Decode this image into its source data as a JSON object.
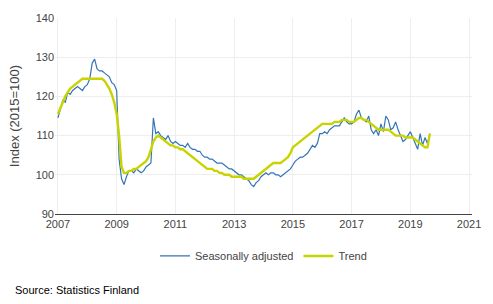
{
  "chart_data": {
    "type": "line",
    "ylabel": "Index (2015=100)",
    "annotations": [
      "Source: Statistics Finland"
    ],
    "xlim": [
      2006.9,
      2021.1
    ],
    "xticks": [
      2007,
      2009,
      2011,
      2013,
      2015,
      2017,
      2019,
      2021
    ],
    "ylim": [
      90,
      140
    ],
    "yticks": [
      90,
      100,
      110,
      120,
      130,
      140
    ],
    "grid": true,
    "legend": "bottom",
    "x": [
      2007,
      2007.083333,
      2007.166667,
      2007.25,
      2007.333333,
      2007.416667,
      2007.5,
      2007.583333,
      2007.666667,
      2007.75,
      2007.833333,
      2007.916667,
      2008,
      2008.083333,
      2008.166667,
      2008.25,
      2008.333333,
      2008.416667,
      2008.5,
      2008.583333,
      2008.666667,
      2008.75,
      2008.833333,
      2008.916667,
      2009,
      2009.083333,
      2009.166667,
      2009.25,
      2009.333333,
      2009.416667,
      2009.5,
      2009.583333,
      2009.666667,
      2009.75,
      2009.833333,
      2009.916667,
      2010,
      2010.083333,
      2010.166667,
      2010.25,
      2010.333333,
      2010.416667,
      2010.5,
      2010.583333,
      2010.666667,
      2010.75,
      2010.833333,
      2010.916667,
      2011,
      2011.083333,
      2011.166667,
      2011.25,
      2011.333333,
      2011.416667,
      2011.5,
      2011.583333,
      2011.666667,
      2011.75,
      2011.833333,
      2011.916667,
      2012,
      2012.083333,
      2012.166667,
      2012.25,
      2012.333333,
      2012.416667,
      2012.5,
      2012.583333,
      2012.666667,
      2012.75,
      2012.833333,
      2012.916667,
      2013,
      2013.083333,
      2013.166667,
      2013.25,
      2013.333333,
      2013.416667,
      2013.5,
      2013.583333,
      2013.666667,
      2013.75,
      2013.833333,
      2013.916667,
      2014,
      2014.083333,
      2014.166667,
      2014.25,
      2014.333333,
      2014.416667,
      2014.5,
      2014.583333,
      2014.666667,
      2014.75,
      2014.833333,
      2014.916667,
      2015,
      2015.083333,
      2015.166667,
      2015.25,
      2015.333333,
      2015.416667,
      2015.5,
      2015.583333,
      2015.666667,
      2015.75,
      2015.833333,
      2015.916667,
      2016,
      2016.083333,
      2016.166667,
      2016.25,
      2016.333333,
      2016.416667,
      2016.5,
      2016.583333,
      2016.666667,
      2016.75,
      2016.833333,
      2016.916667,
      2017,
      2017.083333,
      2017.166667,
      2017.25,
      2017.333333,
      2017.416667,
      2017.5,
      2017.583333,
      2017.666667,
      2017.75,
      2017.833333,
      2017.916667,
      2018,
      2018.083333,
      2018.166667,
      2018.25,
      2018.333333,
      2018.416667,
      2018.5,
      2018.583333,
      2018.666667,
      2018.75,
      2018.833333,
      2018.916667,
      2019,
      2019.083333,
      2019.166667,
      2019.25,
      2019.333333,
      2019.416667,
      2019.5,
      2019.583333,
      2019.666667
    ],
    "series": [
      {
        "name": "Seasonally adjusted",
        "color": "#3375B5",
        "values": [
          114.5,
          116.5,
          119.0,
          118.5,
          121.0,
          120.5,
          121.5,
          122.0,
          122.5,
          122.0,
          121.5,
          122.5,
          123.0,
          124.5,
          128.5,
          129.5,
          127.0,
          126.5,
          126.5,
          126.0,
          125.5,
          125.0,
          123.5,
          123.0,
          121.5,
          104.0,
          99.0,
          97.5,
          99.5,
          101.0,
          101.0,
          100.5,
          101.5,
          101.0,
          100.5,
          101.0,
          102.0,
          102.5,
          103.0,
          114.5,
          110.5,
          111.0,
          110.0,
          109.5,
          109.0,
          110.0,
          108.5,
          108.0,
          108.5,
          108.0,
          107.5,
          107.5,
          107.0,
          108.0,
          107.0,
          106.5,
          106.5,
          106.0,
          106.0,
          105.0,
          104.5,
          104.5,
          104.0,
          104.0,
          103.5,
          103.0,
          103.0,
          103.0,
          102.5,
          102.0,
          101.5,
          101.5,
          101.0,
          100.5,
          100.0,
          100.0,
          99.5,
          99.0,
          98.5,
          97.5,
          97.0,
          98.0,
          98.5,
          99.5,
          100.0,
          100.5,
          100.0,
          100.5,
          100.5,
          100.0,
          100.0,
          99.5,
          100.0,
          100.5,
          101.0,
          101.5,
          102.5,
          103.5,
          104.0,
          104.5,
          104.5,
          105.0,
          105.5,
          106.5,
          107.5,
          107.0,
          108.0,
          110.5,
          110.5,
          111.0,
          110.5,
          111.5,
          112.0,
          112.5,
          112.5,
          112.5,
          113.5,
          114.5,
          113.5,
          113.0,
          113.0,
          113.5,
          115.5,
          116.5,
          114.5,
          114.0,
          113.5,
          115.0,
          111.5,
          110.5,
          111.5,
          110.0,
          113.0,
          111.0,
          115.0,
          114.0,
          111.5,
          112.0,
          113.5,
          111.5,
          110.0,
          108.5,
          109.0,
          110.0,
          111.0,
          109.5,
          108.0,
          106.5,
          110.5,
          107.5,
          109.5,
          108.0,
          110.5
        ]
      },
      {
        "name": "Trend",
        "color": "#C8D400",
        "values": [
          115.5,
          117.0,
          118.5,
          120.0,
          121.0,
          122.0,
          122.5,
          123.0,
          123.5,
          124.0,
          124.5,
          124.5,
          124.5,
          124.5,
          124.5,
          124.5,
          124.5,
          124.5,
          124.5,
          124.0,
          123.0,
          122.0,
          120.5,
          118.5,
          115.5,
          110.0,
          102.0,
          100.5,
          100.5,
          101.0,
          101.0,
          101.5,
          101.5,
          102.0,
          102.5,
          103.0,
          103.5,
          104.5,
          106.5,
          108.5,
          109.5,
          110.0,
          109.5,
          109.0,
          108.5,
          108.0,
          107.5,
          107.5,
          107.0,
          107.0,
          106.5,
          106.5,
          106.0,
          105.5,
          105.0,
          104.5,
          104.0,
          103.5,
          103.0,
          102.5,
          102.0,
          101.5,
          101.5,
          101.5,
          101.0,
          101.0,
          100.5,
          100.5,
          100.0,
          100.0,
          100.0,
          99.5,
          99.5,
          99.5,
          99.5,
          99.5,
          99.0,
          99.0,
          99.0,
          99.0,
          99.0,
          99.5,
          100.0,
          100.5,
          101.0,
          101.5,
          102.0,
          102.5,
          103.0,
          103.0,
          103.0,
          103.0,
          103.5,
          104.0,
          104.5,
          105.5,
          107.0,
          107.5,
          108.0,
          108.5,
          109.0,
          109.5,
          110.0,
          110.5,
          111.0,
          111.5,
          112.0,
          112.5,
          113.0,
          113.0,
          113.0,
          113.0,
          113.0,
          113.5,
          113.5,
          113.5,
          114.0,
          114.0,
          114.0,
          113.5,
          113.5,
          113.5,
          114.0,
          114.5,
          114.5,
          114.0,
          114.0,
          113.5,
          113.0,
          112.5,
          112.0,
          111.5,
          111.5,
          111.5,
          111.5,
          111.5,
          111.0,
          110.5,
          110.0,
          110.0,
          110.0,
          110.0,
          109.5,
          109.5,
          109.5,
          109.5,
          109.0,
          108.5,
          108.0,
          107.5,
          107.0,
          107.0,
          110.5
        ]
      }
    ]
  }
}
